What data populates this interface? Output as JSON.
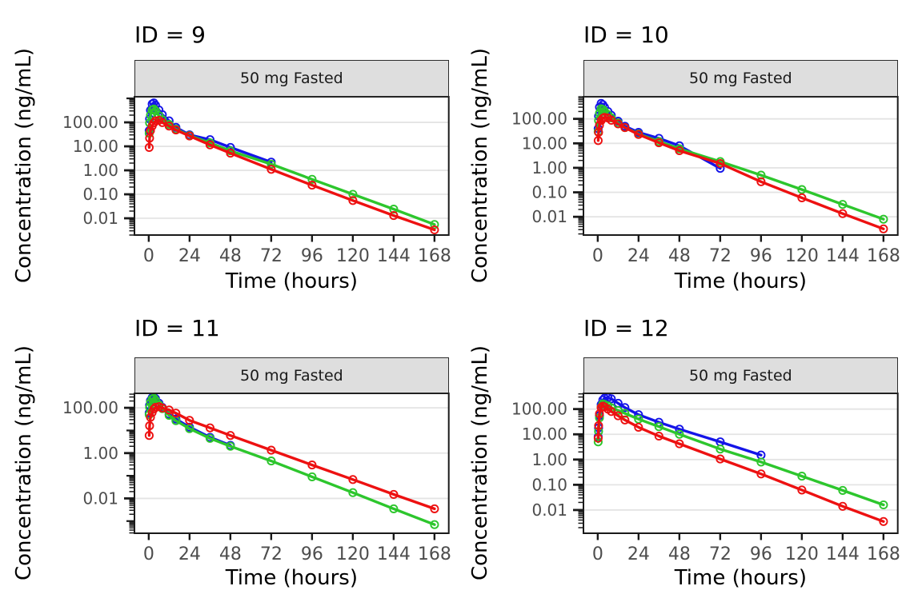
{
  "figure": {
    "x_axis_title": "Time (hours)",
    "y_axis_title": "Concentration (ng/mL)",
    "facet_strip_label": "50 mg Fasted",
    "colors": {
      "blue": "#1414e8",
      "green": "#2dc62d",
      "red": "#ed1111",
      "strip_bg": "#dedede",
      "gridline": "#e4e4e4",
      "tick_label": "#4d4d4d",
      "axis": "#1a1a1a"
    }
  },
  "chart_data": [
    {
      "type": "line",
      "title": "ID = 9",
      "strip": "50 mg Fasted",
      "xlabel": "Time (hours)",
      "ylabel": "Concentration (ng/mL)",
      "x_ticks": [
        0,
        24,
        48,
        72,
        96,
        120,
        144,
        168
      ],
      "xlim": [
        -8.4,
        176.4
      ],
      "y_scale": "log10",
      "y_ticks": {
        "values": [
          100,
          10,
          1,
          0.1,
          0.01
        ],
        "labels": [
          "100.00",
          "10.00",
          "1.00",
          "0.10",
          "0.01"
        ]
      },
      "ylim": [
        0.002,
        1170
      ],
      "marker": "open-circle",
      "grid": "horizontal-major-only",
      "legend": "none",
      "series": [
        {
          "name": "blue",
          "color": "#1414e8",
          "x": [
            0.25,
            0.5,
            1,
            2,
            3,
            4,
            6,
            8,
            12,
            16,
            24,
            36,
            48,
            72
          ],
          "y": [
            45,
            140,
            320,
            580,
            650,
            520,
            330,
            210,
            115,
            62,
            30,
            19,
            9,
            2.2
          ]
        },
        {
          "name": "green",
          "color": "#2dc62d",
          "x": [
            0.25,
            0.5,
            1,
            2,
            3,
            4,
            6,
            8,
            12,
            16,
            24,
            36,
            48,
            72,
            96,
            120,
            144,
            168
          ],
          "y": [
            35,
            95,
            200,
            330,
            360,
            300,
            190,
            130,
            82,
            52,
            28,
            14,
            6.5,
            1.8,
            0.42,
            0.1,
            0.024,
            0.0055
          ]
        },
        {
          "name": "red",
          "color": "#ed1111",
          "x": [
            0.25,
            0.5,
            1,
            2,
            3,
            4,
            6,
            8,
            12,
            16,
            24,
            36,
            48,
            72,
            96,
            120,
            144,
            168
          ],
          "y": [
            9,
            22,
            45,
            70,
            95,
            115,
            122,
            98,
            70,
            48,
            27,
            11.5,
            5.2,
            1.1,
            0.24,
            0.055,
            0.013,
            0.0033
          ]
        }
      ]
    },
    {
      "type": "line",
      "title": "ID = 10",
      "strip": "50 mg Fasted",
      "xlabel": "Time (hours)",
      "ylabel": "Concentration (ng/mL)",
      "x_ticks": [
        0,
        24,
        48,
        72,
        96,
        120,
        144,
        168
      ],
      "xlim": [
        -8.4,
        176.4
      ],
      "y_scale": "log10",
      "y_ticks": {
        "values": [
          100,
          10,
          1,
          0.1,
          0.01
        ],
        "labels": [
          "100.00",
          "10.00",
          "1.00",
          "0.10",
          "0.01"
        ]
      },
      "ylim": [
        0.0018,
        800
      ],
      "marker": "open-circle",
      "grid": "horizontal-major-only",
      "legend": "none",
      "series": [
        {
          "name": "blue",
          "color": "#1414e8",
          "x": [
            0.25,
            0.5,
            1,
            2,
            3,
            4,
            6,
            8,
            12,
            16,
            24,
            36,
            48,
            72
          ],
          "y": [
            40,
            130,
            300,
            430,
            380,
            300,
            200,
            140,
            80,
            50,
            28,
            16,
            8,
            0.95
          ]
        },
        {
          "name": "green",
          "color": "#2dc62d",
          "x": [
            0.25,
            0.5,
            1,
            2,
            3,
            4,
            6,
            8,
            12,
            16,
            24,
            36,
            48,
            72,
            96,
            120,
            144,
            168
          ],
          "y": [
            30,
            85,
            170,
            260,
            240,
            205,
            150,
            110,
            68,
            44,
            24,
            12,
            6,
            1.8,
            0.5,
            0.13,
            0.032,
            0.008
          ]
        },
        {
          "name": "red",
          "color": "#ed1111",
          "x": [
            0.25,
            0.5,
            1,
            2,
            3,
            4,
            6,
            8,
            12,
            16,
            24,
            36,
            48,
            72,
            96,
            120,
            144,
            168
          ],
          "y": [
            13,
            28,
            55,
            85,
            105,
            115,
            108,
            88,
            62,
            44,
            23,
            10.5,
            5,
            1.5,
            0.27,
            0.06,
            0.0135,
            0.0032
          ]
        }
      ]
    },
    {
      "type": "line",
      "title": "ID = 11",
      "strip": "50 mg Fasted",
      "xlabel": "Time (hours)",
      "ylabel": "Concentration (ng/mL)",
      "x_ticks": [
        0,
        24,
        48,
        72,
        96,
        120,
        144,
        168
      ],
      "xlim": [
        -8.4,
        176.4
      ],
      "y_scale": "log10",
      "y_ticks": {
        "values": [
          100,
          1,
          0.01
        ],
        "labels": [
          "100.00",
          "1.00",
          "0.01"
        ]
      },
      "ylim": [
        0.00029,
        435
      ],
      "marker": "open-circle",
      "grid": "horizontal-major-only",
      "legend": "none",
      "series": [
        {
          "name": "blue",
          "color": "#1414e8",
          "x": [
            0.25,
            0.5,
            1,
            2,
            3,
            4,
            6,
            8,
            12,
            16,
            24,
            36,
            48
          ],
          "y": [
            60,
            130,
            210,
            280,
            300,
            255,
            160,
            105,
            52,
            32,
            14,
            5,
            2.2
          ]
        },
        {
          "name": "green",
          "color": "#2dc62d",
          "x": [
            0.25,
            0.5,
            1,
            2,
            3,
            4,
            6,
            8,
            12,
            16,
            24,
            36,
            48,
            72,
            96,
            120,
            144,
            168
          ],
          "y": [
            50,
            105,
            175,
            245,
            265,
            215,
            135,
            92,
            46,
            27,
            12,
            4.5,
            2,
            0.45,
            0.09,
            0.018,
            0.0035,
            0.0007
          ]
        },
        {
          "name": "red",
          "color": "#ed1111",
          "x": [
            0.25,
            0.5,
            1,
            2,
            3,
            4,
            6,
            8,
            12,
            16,
            24,
            36,
            48,
            72,
            96,
            120,
            144,
            168
          ],
          "y": [
            6,
            16,
            38,
            62,
            88,
            105,
            112,
            98,
            80,
            58,
            28,
            13,
            6,
            1.35,
            0.3,
            0.068,
            0.015,
            0.0035
          ]
        }
      ]
    },
    {
      "type": "line",
      "title": "ID = 12",
      "strip": "50 mg Fasted",
      "xlabel": "Time (hours)",
      "ylabel": "Concentration (ng/mL)",
      "x_ticks": [
        0,
        24,
        48,
        72,
        96,
        120,
        144,
        168
      ],
      "xlim": [
        -8.4,
        176.4
      ],
      "y_scale": "log10",
      "y_ticks": {
        "values": [
          100,
          10,
          1,
          0.1,
          0.01
        ],
        "labels": [
          "100.00",
          "10.00",
          "1.00",
          "0.10",
          "0.01"
        ]
      },
      "ylim": [
        0.0012,
        420
      ],
      "marker": "open-circle",
      "grid": "horizontal-major-only",
      "legend": "none",
      "series": [
        {
          "name": "blue",
          "color": "#1414e8",
          "x": [
            0.25,
            0.5,
            1,
            2,
            3,
            4,
            6,
            8,
            12,
            16,
            24,
            36,
            48,
            72,
            96
          ],
          "y": [
            8,
            18,
            55,
            150,
            230,
            270,
            285,
            255,
            170,
            115,
            60,
            30,
            16,
            5,
            1.5
          ]
        },
        {
          "name": "green",
          "color": "#2dc62d",
          "x": [
            0.25,
            0.5,
            1,
            2,
            3,
            4,
            6,
            8,
            12,
            16,
            24,
            36,
            48,
            72,
            96,
            120,
            144,
            168
          ],
          "y": [
            5,
            13,
            45,
            120,
            160,
            152,
            135,
            112,
            88,
            68,
            40,
            20,
            10,
            2.6,
            0.8,
            0.22,
            0.06,
            0.016
          ]
        },
        {
          "name": "red",
          "color": "#ed1111",
          "x": [
            0.25,
            0.5,
            1,
            2,
            3,
            4,
            6,
            8,
            12,
            16,
            24,
            36,
            48,
            72,
            96,
            120,
            144,
            168
          ],
          "y": [
            7,
            22,
            65,
            115,
            130,
            122,
            100,
            80,
            54,
            37,
            19,
            8.5,
            4.2,
            1.05,
            0.27,
            0.062,
            0.014,
            0.0035
          ]
        }
      ]
    }
  ]
}
